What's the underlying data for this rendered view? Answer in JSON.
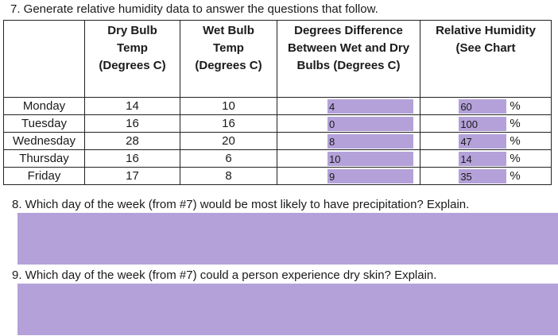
{
  "q7": "7. Generate relative humidity data to answer the questions that follow.",
  "headers": {
    "dry": [
      "Dry Bulb",
      "Temp",
      "(Degrees C)"
    ],
    "wet": [
      "Wet Bulb",
      "Temp",
      "(Degrees C)"
    ],
    "diff": [
      "Degrees Difference",
      "Between Wet and Dry",
      "Bulbs (Degrees C)"
    ],
    "rh": [
      "Relative Humidity",
      "(See Chart"
    ]
  },
  "rows": [
    {
      "day": "Monday",
      "dry": "14",
      "wet": "10",
      "diff": "4",
      "rh": "60"
    },
    {
      "day": "Tuesday",
      "dry": "16",
      "wet": "16",
      "diff": "0",
      "rh": "100"
    },
    {
      "day": "Wednesday",
      "dry": "28",
      "wet": "20",
      "diff": "8",
      "rh": "47"
    },
    {
      "day": "Thursday",
      "dry": "16",
      "wet": "6",
      "diff": "10",
      "rh": "14"
    },
    {
      "day": "Friday",
      "dry": "17",
      "wet": "8",
      "diff": "9",
      "rh": "35"
    }
  ],
  "pct": "%",
  "q8": "8. Which day of the week (from #7) would be most likely to have precipitation? Explain.",
  "q9": "9. Which day of the week (from #7) could a person experience dry skin? Explain.",
  "answer_fill_color": "#b4a1d9"
}
